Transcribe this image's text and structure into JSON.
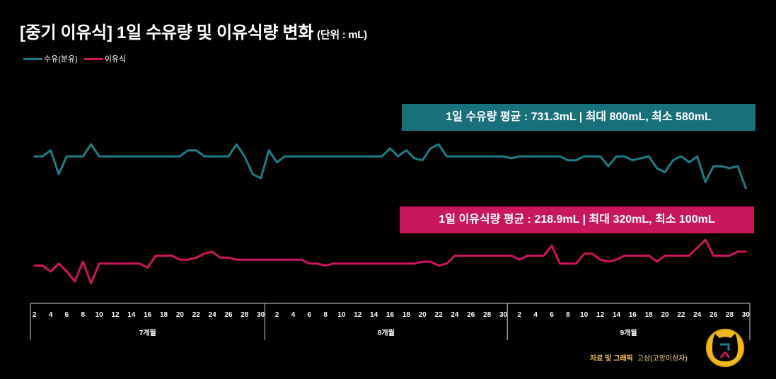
{
  "colors": {
    "background": "#000000",
    "formula_line": "#1b7e86",
    "formula_box": "#17707a",
    "baby_food_line": "#cd1660",
    "baby_food_box": "#c8175d",
    "credit_label": "#f2c14e",
    "logo_ring": "#f0b81c"
  },
  "chart_data": {
    "type": "line",
    "title": "[중기 이유식] 1일 수유량 및 이유식량 변화",
    "unit_note": "(단위 : mL)",
    "xlabel": "",
    "ylabel": "",
    "ylim": [
      0,
      1000
    ],
    "grid": false,
    "legend_position": "top-left",
    "groups": [
      {
        "label": "7개월",
        "categories": [
          "2",
          "",
          "4",
          "",
          "6",
          "",
          "8",
          "",
          "10",
          "",
          "12",
          "",
          "14",
          "",
          "16",
          "",
          "18",
          "",
          "20",
          "",
          "22",
          "",
          "24",
          "",
          "26",
          "",
          "28",
          "",
          "30"
        ]
      },
      {
        "label": "8개월",
        "categories": [
          "",
          "2",
          "",
          "4",
          "",
          "6",
          "",
          "8",
          "",
          "10",
          "",
          "12",
          "",
          "14",
          "",
          "16",
          "",
          "18",
          "",
          "20",
          "",
          "22",
          "",
          "24",
          "",
          "26",
          "",
          "28",
          "",
          "30"
        ]
      },
      {
        "label": "9개월",
        "categories": [
          "",
          "2",
          "",
          "4",
          "",
          "6",
          "",
          "8",
          "",
          "10",
          "",
          "12",
          "",
          "14",
          "",
          "16",
          "",
          "18",
          "",
          "20",
          "",
          "22",
          "",
          "24",
          "",
          "26",
          "",
          "28",
          "",
          "30"
        ]
      }
    ],
    "series": [
      {
        "name": "수유(분유)",
        "color": "#1b7e86",
        "values": [
          740,
          740,
          770,
          650,
          740,
          740,
          740,
          800,
          740,
          740,
          740,
          740,
          740,
          740,
          740,
          740,
          740,
          740,
          740,
          770,
          770,
          740,
          740,
          740,
          740,
          800,
          740,
          650,
          630,
          770,
          710,
          740,
          740,
          740,
          740,
          740,
          740,
          740,
          740,
          740,
          740,
          740,
          740,
          740,
          780,
          740,
          770,
          730,
          720,
          780,
          800,
          740,
          740,
          740,
          740,
          740,
          740,
          740,
          740,
          730,
          740,
          740,
          740,
          740,
          740,
          740,
          720,
          720,
          740,
          740,
          740,
          690,
          740,
          740,
          720,
          730,
          740,
          680,
          660,
          720,
          740,
          710,
          740,
          610,
          690,
          690,
          680,
          690,
          580
        ]
      },
      {
        "name": "이유식",
        "color": "#cd1660",
        "values": [
          190,
          190,
          160,
          200,
          160,
          110,
          210,
          100,
          200,
          200,
          200,
          200,
          200,
          200,
          180,
          240,
          240,
          240,
          220,
          220,
          230,
          250,
          260,
          230,
          230,
          220,
          220,
          220,
          220,
          220,
          220,
          220,
          220,
          220,
          200,
          200,
          190,
          200,
          200,
          200,
          200,
          200,
          200,
          200,
          200,
          200,
          200,
          200,
          210,
          210,
          190,
          200,
          240,
          240,
          240,
          240,
          240,
          240,
          240,
          240,
          220,
          240,
          240,
          240,
          290,
          200,
          200,
          200,
          250,
          250,
          220,
          210,
          220,
          240,
          240,
          240,
          240,
          210,
          240,
          240,
          240,
          240,
          280,
          320,
          240,
          240,
          240,
          260,
          260
        ]
      }
    ],
    "annotations": [
      {
        "series": "수유(분유)",
        "text": "1일 수유량 평균 : 731.3mL | 최대 800mL, 최소 580mL"
      },
      {
        "series": "이유식",
        "text": "1일 이유식량 평균 : 218.9mL | 최대 320mL, 최소 100mL"
      }
    ]
  },
  "credit": {
    "label": "자료 및 그래픽",
    "author": "고상(고앙이상자)"
  },
  "logo": {
    "mark": "ㄱㅅ"
  }
}
